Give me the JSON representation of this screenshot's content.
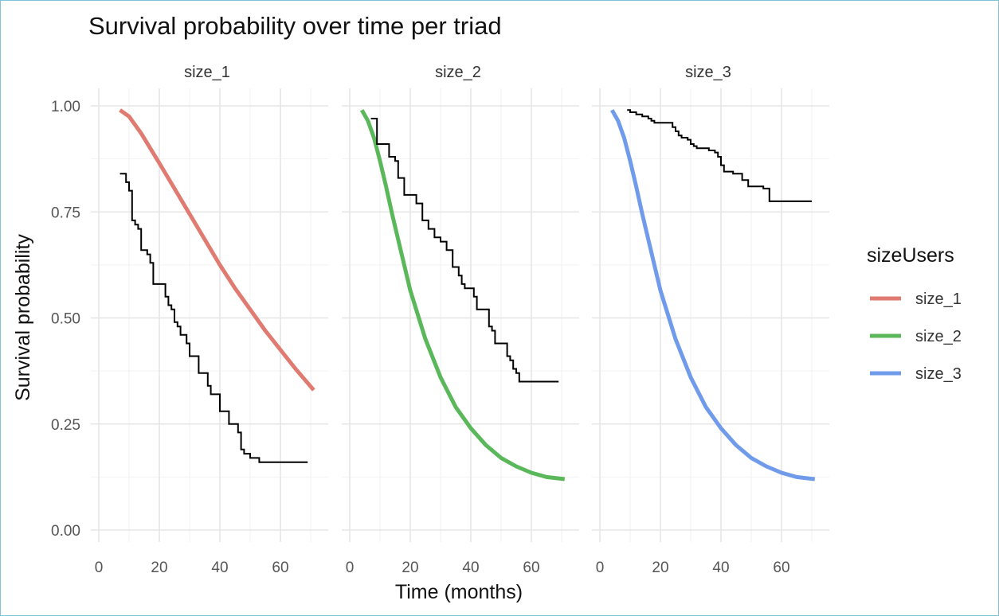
{
  "chart_data": {
    "type": "line",
    "title": "Survival probability over time per triad",
    "xlabel": "Time (months)",
    "ylabel": "Survival probability",
    "xlim": [
      0,
      72
    ],
    "ylim": [
      0,
      1
    ],
    "x_ticks": [
      "0",
      "20",
      "40",
      "60"
    ],
    "y_ticks": [
      "0.00",
      "0.25",
      "0.50",
      "0.75",
      "1.00"
    ],
    "grid": true,
    "legend": {
      "title": "sizeUsers",
      "placement": "right",
      "entries": [
        {
          "name": "size_1",
          "color": "#E07B72"
        },
        {
          "name": "size_2",
          "color": "#5AB85A"
        },
        {
          "name": "size_3",
          "color": "#6F9BEA"
        }
      ]
    },
    "panels": [
      {
        "strip": "size_1",
        "fitted_color": "#E07B72",
        "fitted": {
          "x": [
            7,
            10,
            14,
            20,
            25,
            30,
            35,
            40,
            45,
            50,
            55,
            60,
            65,
            71
          ],
          "y": [
            0.99,
            0.975,
            0.935,
            0.865,
            0.805,
            0.745,
            0.685,
            0.625,
            0.57,
            0.52,
            0.47,
            0.425,
            0.38,
            0.33
          ]
        },
        "km": {
          "x": [
            7,
            8,
            9,
            10,
            11,
            12,
            13,
            14,
            15,
            16,
            17,
            18,
            19,
            20,
            21,
            22,
            23,
            24,
            25,
            26,
            27,
            28,
            29,
            30,
            31,
            32,
            33,
            35,
            36,
            37,
            38,
            39,
            40,
            41,
            42,
            43,
            45,
            46,
            47,
            48,
            49,
            50,
            51,
            52,
            53,
            55,
            58,
            62,
            69
          ],
          "y": [
            0.84,
            0.84,
            0.82,
            0.8,
            0.73,
            0.72,
            0.71,
            0.66,
            0.66,
            0.65,
            0.63,
            0.58,
            0.58,
            0.58,
            0.58,
            0.55,
            0.53,
            0.52,
            0.49,
            0.48,
            0.46,
            0.46,
            0.44,
            0.41,
            0.41,
            0.41,
            0.37,
            0.37,
            0.34,
            0.32,
            0.32,
            0.32,
            0.28,
            0.28,
            0.28,
            0.25,
            0.25,
            0.23,
            0.19,
            0.18,
            0.18,
            0.17,
            0.17,
            0.17,
            0.16,
            0.16,
            0.16,
            0.16,
            0.16
          ]
        }
      },
      {
        "strip": "size_2",
        "fitted_color": "#5AB85A",
        "fitted": {
          "x": [
            4,
            6,
            8,
            10,
            12,
            14,
            16,
            18,
            20,
            25,
            30,
            35,
            40,
            45,
            50,
            55,
            60,
            65,
            71
          ],
          "y": [
            0.99,
            0.965,
            0.925,
            0.87,
            0.81,
            0.745,
            0.685,
            0.625,
            0.565,
            0.45,
            0.36,
            0.29,
            0.24,
            0.2,
            0.17,
            0.15,
            0.135,
            0.125,
            0.12
          ]
        },
        "km": {
          "x": [
            7,
            8,
            9,
            10,
            11,
            12,
            13,
            14,
            15,
            16,
            17,
            18,
            19,
            20,
            21,
            22,
            23,
            24,
            25,
            26,
            27,
            28,
            29,
            30,
            31,
            32,
            33,
            34,
            35,
            36,
            37,
            38,
            39,
            40,
            41,
            42,
            43,
            44,
            45,
            46,
            47,
            48,
            49,
            50,
            51,
            52,
            53,
            54,
            55,
            56,
            60,
            64,
            69
          ],
          "y": [
            0.97,
            0.97,
            0.91,
            0.91,
            0.91,
            0.91,
            0.88,
            0.88,
            0.87,
            0.83,
            0.83,
            0.79,
            0.79,
            0.79,
            0.79,
            0.77,
            0.77,
            0.73,
            0.73,
            0.71,
            0.71,
            0.69,
            0.69,
            0.68,
            0.68,
            0.66,
            0.66,
            0.62,
            0.62,
            0.6,
            0.58,
            0.57,
            0.57,
            0.57,
            0.55,
            0.52,
            0.52,
            0.52,
            0.52,
            0.48,
            0.47,
            0.44,
            0.44,
            0.44,
            0.44,
            0.41,
            0.4,
            0.38,
            0.37,
            0.35,
            0.35,
            0.35,
            0.35
          ]
        }
      },
      {
        "strip": "size_3",
        "fitted_color": "#6F9BEA",
        "fitted": {
          "x": [
            4,
            6,
            8,
            10,
            12,
            14,
            16,
            18,
            20,
            25,
            30,
            35,
            40,
            45,
            50,
            55,
            60,
            65,
            71
          ],
          "y": [
            0.99,
            0.965,
            0.925,
            0.87,
            0.81,
            0.745,
            0.685,
            0.625,
            0.565,
            0.45,
            0.36,
            0.29,
            0.24,
            0.2,
            0.17,
            0.15,
            0.135,
            0.125,
            0.12
          ]
        },
        "km": {
          "x": [
            9,
            10,
            11,
            12,
            13,
            14,
            15,
            16,
            17,
            18,
            19,
            20,
            21,
            22,
            23,
            24,
            25,
            26,
            27,
            28,
            29,
            30,
            31,
            32,
            33,
            34,
            35,
            36,
            37,
            38,
            39,
            40,
            41,
            42,
            43,
            44,
            45,
            46,
            47,
            48,
            49,
            50,
            51,
            52,
            53,
            54,
            55,
            56,
            60,
            65,
            70
          ],
          "y": [
            0.99,
            0.985,
            0.985,
            0.98,
            0.98,
            0.975,
            0.975,
            0.97,
            0.965,
            0.96,
            0.96,
            0.96,
            0.96,
            0.96,
            0.96,
            0.95,
            0.94,
            0.93,
            0.925,
            0.925,
            0.92,
            0.91,
            0.905,
            0.9,
            0.9,
            0.9,
            0.9,
            0.895,
            0.895,
            0.89,
            0.88,
            0.86,
            0.845,
            0.845,
            0.845,
            0.84,
            0.84,
            0.84,
            0.825,
            0.825,
            0.81,
            0.81,
            0.81,
            0.81,
            0.81,
            0.805,
            0.805,
            0.775,
            0.775,
            0.775,
            0.775
          ]
        }
      }
    ]
  }
}
